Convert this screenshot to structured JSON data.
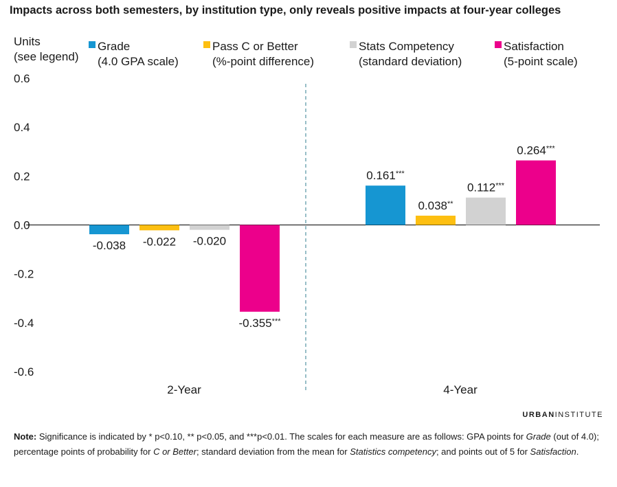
{
  "title": "Impacts across both semesters, by institution type, only reveals positive impacts at four-year colleges",
  "brand": {
    "part1": "URBAN",
    "part2": "INSTITUTE"
  },
  "note": {
    "label": "Note:",
    "segments": [
      {
        "text": " Significance is indicated by * p<0.10, ** p<0.05, and ***p<0.01. The scales for each measure are as follows: GPA points for ",
        "italic": false
      },
      {
        "text": "Grade",
        "italic": true
      },
      {
        "text": " (out of 4.0); percentage points of probability for ",
        "italic": false
      },
      {
        "text": "C or Better",
        "italic": true
      },
      {
        "text": "; standard deviation from the mean for ",
        "italic": false
      },
      {
        "text": "Statistics competency",
        "italic": true
      },
      {
        "text": "; and points out of 5 for ",
        "italic": false
      },
      {
        "text": "Satisfaction",
        "italic": true
      },
      {
        "text": ".",
        "italic": false
      }
    ]
  },
  "chart_data": {
    "type": "bar",
    "ylabel_lines": [
      "Units",
      "(see legend)"
    ],
    "ylim": [
      -0.6,
      0.6
    ],
    "yticks": [
      0.6,
      0.4,
      0.2,
      0.0,
      -0.2,
      -0.4,
      -0.6
    ],
    "ytick_labels": [
      "0.6",
      "0.4",
      "0.2",
      "0.0",
      "-0.2",
      "-0.4",
      "-0.6"
    ],
    "categories": [
      "2-Year",
      "4-Year"
    ],
    "legend_position": "top",
    "grid": false,
    "series": [
      {
        "name": "Grade",
        "sub": "(4.0 GPA scale)",
        "color": "#1696d2",
        "values": [
          -0.038,
          0.161
        ],
        "labels": [
          "-0.038",
          "0.161"
        ],
        "stars": [
          "",
          "***"
        ]
      },
      {
        "name": "Pass C or Better",
        "sub": "(%-point difference)",
        "color": "#fdbf11",
        "values": [
          -0.022,
          0.038
        ],
        "labels": [
          "-0.022",
          "0.038"
        ],
        "stars": [
          "",
          "**"
        ]
      },
      {
        "name": "Stats Competency",
        "sub": "(standard deviation)",
        "color": "#d2d2d2",
        "values": [
          -0.02,
          0.112
        ],
        "labels": [
          "-0.020",
          "0.112"
        ],
        "stars": [
          "",
          "***"
        ]
      },
      {
        "name": "Satisfaction",
        "sub": "(5-point scale)",
        "color": "#ec008b",
        "values": [
          -0.355,
          0.264
        ],
        "labels": [
          "-0.355",
          "0.264"
        ],
        "stars": [
          "***",
          "***"
        ]
      }
    ]
  }
}
